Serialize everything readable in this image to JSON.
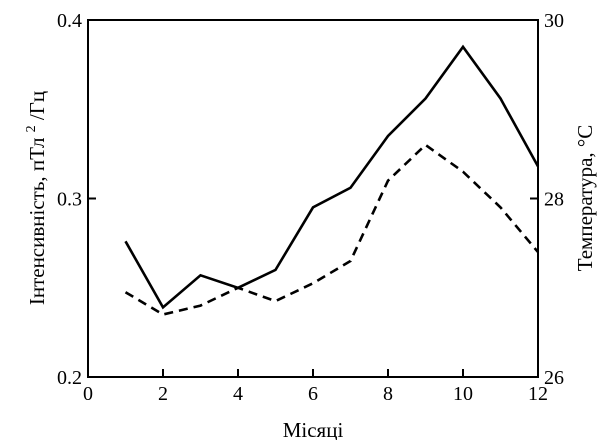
{
  "chart_data": {
    "type": "line",
    "xlabel": "Місяці",
    "ylabel_left": {
      "main": "Інтенсивність, пТл",
      "sup": "2",
      "suffix": "/Гц"
    },
    "ylabel_right": "Температура, °С",
    "xlim": [
      0,
      12
    ],
    "ylim_left": [
      0.2,
      0.4
    ],
    "ylim_right": [
      26,
      30
    ],
    "x_ticks": [
      "0",
      "2",
      "4",
      "6",
      "8",
      "10",
      "12"
    ],
    "y_left_ticks": [
      "0.2",
      "0.3",
      "0.4"
    ],
    "y_right_ticks": [
      "26",
      "28",
      "30"
    ],
    "grid": false,
    "series": [
      {
        "axis": "left",
        "style": "solid",
        "color": "#000000",
        "x": [
          1,
          2,
          3,
          4,
          5,
          6,
          7,
          8,
          9,
          10,
          11,
          12
        ],
        "y": [
          0.276,
          0.239,
          0.257,
          0.25,
          0.26,
          0.295,
          0.306,
          0.335,
          0.356,
          0.385,
          0.356,
          0.318
        ]
      },
      {
        "axis": "right",
        "style": "dashed",
        "color": "#000000",
        "x": [
          1,
          2,
          3,
          4,
          5,
          6,
          7,
          8,
          9,
          10,
          11,
          12
        ],
        "y": [
          26.95,
          26.7,
          26.8,
          27.0,
          26.85,
          27.05,
          27.3,
          28.2,
          28.6,
          28.3,
          27.9,
          27.4
        ]
      }
    ]
  }
}
